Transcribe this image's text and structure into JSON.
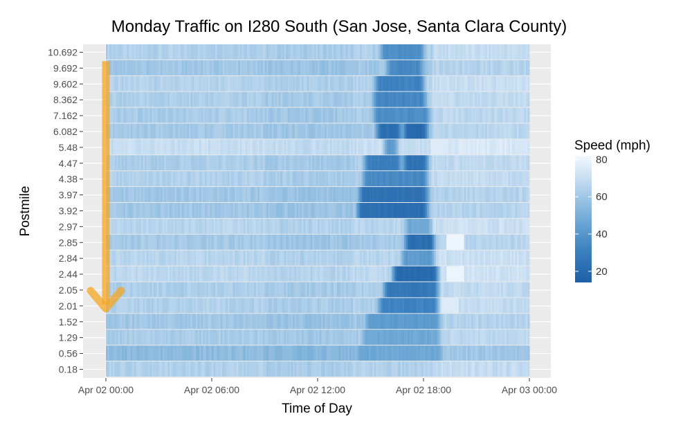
{
  "chart_data": {
    "type": "heatmap",
    "title": "Monday Traffic on I280 South (San Jose, Santa Clara County)",
    "xlabel": "Time of Day",
    "ylabel": "Postmile",
    "x_ticks": [
      "Apr 02 00:00",
      "Apr 02 06:00",
      "Apr 02 12:00",
      "Apr 02 18:00",
      "Apr 03 00:00"
    ],
    "x_range_hours": [
      0,
      24
    ],
    "y_categories": [
      "10.692",
      "9.692",
      "9.602",
      "8.362",
      "7.162",
      "6.082",
      "5.48",
      "4.47",
      "4.38",
      "3.97",
      "3.92",
      "2.97",
      "2.85",
      "2.84",
      "2.44",
      "2.05",
      "2.01",
      "1.52",
      "1.29",
      "0.56",
      "0.18"
    ],
    "base_speed": [
      64,
      60,
      65,
      63,
      62,
      61,
      70,
      63,
      64,
      60,
      60,
      66,
      61,
      66,
      67,
      63,
      64,
      60,
      62,
      55,
      64
    ],
    "congestion": [
      {
        "postmile": "10.692",
        "start": 15.8,
        "end": 17.8,
        "min_speed": 35
      },
      {
        "postmile": "9.692",
        "start": 16.2,
        "end": 17.7,
        "min_speed": 33
      },
      {
        "postmile": "9.602",
        "start": 15.5,
        "end": 17.8,
        "min_speed": 30
      },
      {
        "postmile": "8.362",
        "start": 15.4,
        "end": 17.9,
        "min_speed": 32
      },
      {
        "postmile": "7.162",
        "start": 15.4,
        "end": 18.1,
        "min_speed": 35
      },
      {
        "postmile": "6.082",
        "start": 15.6,
        "end": 16.5,
        "min_speed": 20
      },
      {
        "postmile": "6.082",
        "start": 17.1,
        "end": 18.0,
        "min_speed": 18
      },
      {
        "postmile": "5.48",
        "start": 16.0,
        "end": 16.3,
        "min_speed": 40
      },
      {
        "postmile": "4.47",
        "start": 14.9,
        "end": 16.5,
        "min_speed": 28
      },
      {
        "postmile": "4.47",
        "start": 17.1,
        "end": 18.0,
        "min_speed": 22
      },
      {
        "postmile": "4.38",
        "start": 14.8,
        "end": 18.0,
        "min_speed": 33
      },
      {
        "postmile": "3.97",
        "start": 14.6,
        "end": 18.0,
        "min_speed": 22
      },
      {
        "postmile": "3.92",
        "start": 14.5,
        "end": 18.0,
        "min_speed": 20
      },
      {
        "postmile": "2.97",
        "start": 17.2,
        "end": 18.2,
        "min_speed": 45
      },
      {
        "postmile": "2.85",
        "start": 17.2,
        "end": 18.4,
        "min_speed": 20
      },
      {
        "postmile": "2.84",
        "start": 17.0,
        "end": 18.4,
        "min_speed": 40
      },
      {
        "postmile": "2.44",
        "start": 16.5,
        "end": 18.6,
        "min_speed": 18
      },
      {
        "postmile": "2.05",
        "start": 16.0,
        "end": 18.6,
        "min_speed": 25
      },
      {
        "postmile": "2.01",
        "start": 15.7,
        "end": 18.6,
        "min_speed": 30
      },
      {
        "postmile": "1.52",
        "start": 15.0,
        "end": 18.7,
        "min_speed": 40
      },
      {
        "postmile": "1.29",
        "start": 14.8,
        "end": 18.7,
        "min_speed": 45
      },
      {
        "postmile": "0.56",
        "start": 14.5,
        "end": 18.8,
        "min_speed": 45
      }
    ],
    "fast_patches": [
      {
        "postmile": "2.85",
        "start": 19.3,
        "end": 20.3,
        "speed": 80
      },
      {
        "postmile": "2.44",
        "start": 19.3,
        "end": 20.3,
        "speed": 80
      },
      {
        "postmile": "2.01",
        "start": 19.0,
        "end": 20.0,
        "speed": 76
      },
      {
        "postmile": "5.48",
        "start": 18.4,
        "end": 19.2,
        "speed": 76
      }
    ],
    "annotation": {
      "type": "arrow",
      "color": "#f5a623",
      "from_postmile": "9.692",
      "to_postmile": "2.01",
      "at_hours": 0
    },
    "legend": {
      "title": "Speed (mph)",
      "ticks": [
        80,
        60,
        40,
        20
      ],
      "range": [
        14,
        82
      ],
      "color_low": "#1f5fa6",
      "color_high": "#f3f8fe",
      "position": "right"
    },
    "panel_background": "#ebebeb",
    "grid": true
  }
}
